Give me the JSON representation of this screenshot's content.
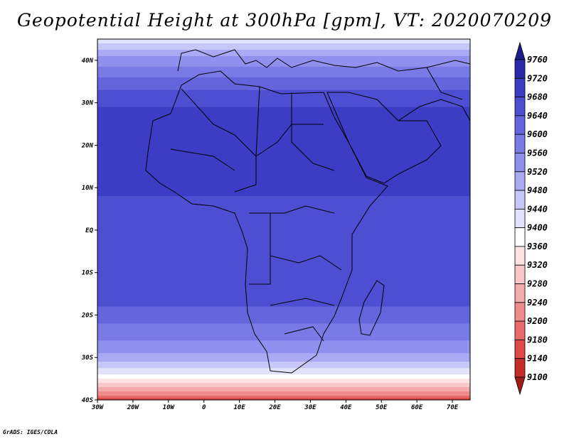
{
  "title": "Geopotential Height at 300hPa [gpm], VT: 2020070209",
  "footer": "GrADS: IGES/COLA",
  "map": {
    "lon_range": [
      -30,
      75
    ],
    "lat_range": [
      -40,
      45
    ],
    "lon_ticks": [
      {
        "value": -30,
        "label": "30W"
      },
      {
        "value": -20,
        "label": "20W"
      },
      {
        "value": -10,
        "label": "10W"
      },
      {
        "value": 0,
        "label": "0"
      },
      {
        "value": 10,
        "label": "10E"
      },
      {
        "value": 20,
        "label": "20E"
      },
      {
        "value": 30,
        "label": "30E"
      },
      {
        "value": 40,
        "label": "40E"
      },
      {
        "value": 50,
        "label": "50E"
      },
      {
        "value": 60,
        "label": "60E"
      },
      {
        "value": 70,
        "label": "70E"
      }
    ],
    "lat_ticks": [
      {
        "value": -40,
        "label": "40S"
      },
      {
        "value": -30,
        "label": "30S"
      },
      {
        "value": -20,
        "label": "20S"
      },
      {
        "value": -10,
        "label": "10S"
      },
      {
        "value": 0,
        "label": "EQ"
      },
      {
        "value": 10,
        "label": "10N"
      },
      {
        "value": 20,
        "label": "20N"
      },
      {
        "value": 30,
        "label": "30N"
      },
      {
        "value": 40,
        "label": "40N"
      }
    ],
    "zonal_profile": [
      {
        "lat": 45,
        "value": 9420
      },
      {
        "lat": 43,
        "value": 9470
      },
      {
        "lat": 40,
        "value": 9540
      },
      {
        "lat": 36,
        "value": 9600
      },
      {
        "lat": 32,
        "value": 9650
      },
      {
        "lat": 28,
        "value": 9690
      },
      {
        "lat": 22,
        "value": 9700
      },
      {
        "lat": 15,
        "value": 9690
      },
      {
        "lat": 8,
        "value": 9680
      },
      {
        "lat": 0,
        "value": 9675
      },
      {
        "lat": -8,
        "value": 9670
      },
      {
        "lat": -14,
        "value": 9660
      },
      {
        "lat": -18,
        "value": 9640
      },
      {
        "lat": -22,
        "value": 9600
      },
      {
        "lat": -26,
        "value": 9560
      },
      {
        "lat": -29,
        "value": 9520
      },
      {
        "lat": -32,
        "value": 9460
      },
      {
        "lat": -34,
        "value": 9400
      },
      {
        "lat": -36,
        "value": 9330
      },
      {
        "lat": -38,
        "value": 9240
      },
      {
        "lat": -40,
        "value": 9160
      }
    ]
  },
  "colorbar": {
    "levels": [
      9100,
      9140,
      9180,
      9200,
      9240,
      9280,
      9320,
      9360,
      9400,
      9440,
      9480,
      9520,
      9560,
      9600,
      9640,
      9680,
      9720,
      9760
    ],
    "colors": [
      "#a31a1a",
      "#c42c2c",
      "#de4848",
      "#e86a6a",
      "#ee8c8c",
      "#f4aaaa",
      "#f8c8c8",
      "#fce2e2",
      "#ffffff",
      "#e2e2fc",
      "#c8c8f8",
      "#aaaaf4",
      "#9090ee",
      "#7a7ae6",
      "#6464dc",
      "#4e4ed2",
      "#3c3cc4",
      "#2a2aa8",
      "#1c1c8c"
    ]
  }
}
